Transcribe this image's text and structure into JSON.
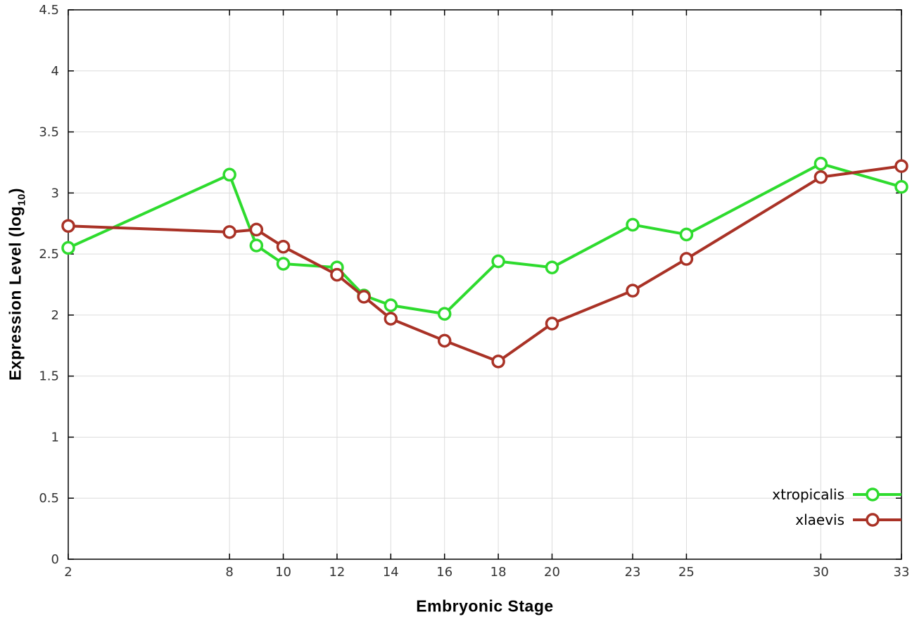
{
  "chart_data": {
    "type": "line",
    "title": "",
    "xlabel": "Embryonic Stage",
    "ylabel": {
      "pre": "Expression Level (log",
      "sub": "10",
      "post": ")"
    },
    "xlim": [
      2,
      33
    ],
    "ylim": [
      0,
      4.5
    ],
    "x_ticks": [
      2,
      8,
      10,
      12,
      14,
      16,
      18,
      20,
      23,
      25,
      30,
      33
    ],
    "y_ticks": [
      0,
      0.5,
      1,
      1.5,
      2,
      2.5,
      3,
      3.5,
      4,
      4.5
    ],
    "grid": true,
    "legend_position": "bottom-right",
    "x": [
      2,
      8,
      9,
      10,
      12,
      13,
      14,
      16,
      18,
      20,
      23,
      25,
      30,
      33
    ],
    "series": [
      {
        "name": "xtropicalis",
        "color": "#2edb2e",
        "values": [
          2.55,
          3.15,
          2.57,
          2.42,
          2.39,
          2.16,
          2.08,
          2.01,
          2.44,
          2.39,
          2.74,
          2.66,
          3.24,
          3.05
        ]
      },
      {
        "name": "xlaevis",
        "color": "#a93226",
        "values": [
          2.73,
          2.68,
          2.7,
          2.56,
          2.33,
          2.15,
          1.97,
          1.79,
          1.62,
          1.93,
          2.2,
          2.46,
          3.13,
          3.22
        ]
      }
    ],
    "style": {
      "grid_color": "#dcdcdc",
      "axis_color": "#000000",
      "tick_label_color": "#333333",
      "marker_fill": "#ffffff",
      "line_width": 4,
      "marker_radius": 8,
      "marker_stroke_width": 3.5
    }
  }
}
